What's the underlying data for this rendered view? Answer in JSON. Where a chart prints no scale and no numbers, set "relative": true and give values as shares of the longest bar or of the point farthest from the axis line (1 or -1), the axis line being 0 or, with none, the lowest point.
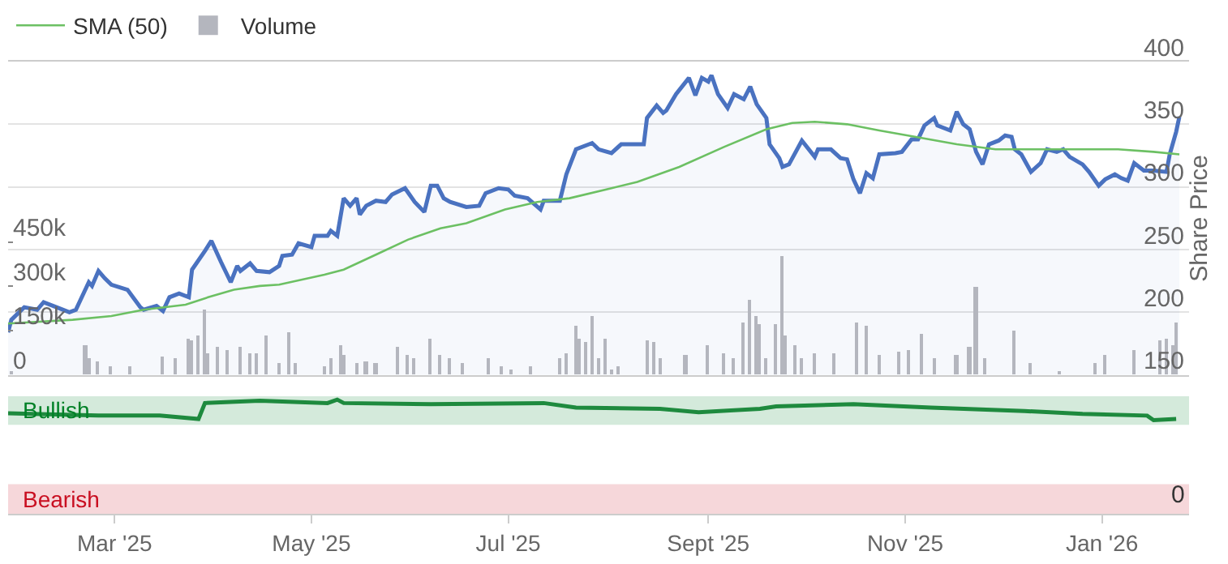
{
  "chart_data": [
    {
      "type": "line",
      "ylabel": "Share Price",
      "ylim": [
        150,
        400
      ],
      "yticks": [
        150,
        200,
        250,
        300,
        350,
        400
      ],
      "y2lim": [
        0,
        1060000
      ],
      "y2ticks": [
        {
          "value": 0,
          "label": "0"
        },
        {
          "value": 150000,
          "label": "150k"
        },
        {
          "value": 300000,
          "label": "300k"
        },
        {
          "value": 450000,
          "label": "450k"
        }
      ],
      "xlim": [
        "2025-01-27",
        "2026-01-28"
      ],
      "grid": "y",
      "legend": "top left",
      "tick_labels": "y",
      "series": [
        {
          "type": "bar",
          "name": "Volume",
          "axis": "y2",
          "color": "#b4b6be",
          "x": [
            "2025-01-28",
            "2025-02-20",
            "2025-02-21",
            "2025-02-24",
            "2025-02-28",
            "2025-03-06",
            "2025-03-16",
            "2025-03-20",
            "2025-03-24",
            "2025-03-25",
            "2025-03-27",
            "2025-03-29",
            "2025-03-30",
            "2025-04-02",
            "2025-04-05",
            "2025-04-09",
            "2025-04-12",
            "2025-04-14",
            "2025-04-17",
            "2025-04-21",
            "2025-04-24",
            "2025-04-26",
            "2025-05-05",
            "2025-05-07",
            "2025-05-10",
            "2025-05-11",
            "2025-05-15",
            "2025-05-18",
            "2025-05-21",
            "2025-05-28",
            "2025-05-31",
            "2025-06-02",
            "2025-06-07",
            "2025-06-10",
            "2025-06-13",
            "2025-06-17",
            "2025-06-25",
            "2025-06-29",
            "2025-07-02",
            "2025-07-08",
            "2025-07-17",
            "2025-07-19",
            "2025-07-22",
            "2025-07-23",
            "2025-07-25",
            "2025-07-27",
            "2025-07-29",
            "2025-07-31",
            "2025-08-02",
            "2025-08-04",
            "2025-08-13",
            "2025-08-15",
            "2025-08-17",
            "2025-08-25",
            "2025-09-01",
            "2025-09-06",
            "2025-09-09",
            "2025-09-12",
            "2025-09-14",
            "2025-09-16",
            "2025-09-17",
            "2025-09-19",
            "2025-09-22",
            "2025-09-24",
            "2025-09-25",
            "2025-09-28",
            "2025-09-30",
            "2025-10-04",
            "2025-10-10",
            "2025-10-17",
            "2025-10-20",
            "2025-10-24",
            "2025-10-30",
            "2025-11-02",
            "2025-11-06",
            "2025-11-10",
            "2025-11-17",
            "2025-11-21",
            "2025-11-23",
            "2025-11-26",
            "2025-12-05",
            "2025-12-10",
            "2025-12-19",
            "2025-12-30",
            "2026-01-02",
            "2026-01-11",
            "2026-01-19",
            "2026-01-21",
            "2026-01-23",
            "2026-01-24"
          ],
          "values": [
            15000,
            103000,
            57000,
            45000,
            30000,
            30000,
            62000,
            57000,
            124000,
            119000,
            134000,
            222000,
            72000,
            93000,
            83000,
            93000,
            72000,
            72000,
            134000,
            41000,
            145000,
            41000,
            30000,
            57000,
            103000,
            67000,
            41000,
            45000,
            41000,
            93000,
            67000,
            57000,
            124000,
            67000,
            57000,
            41000,
            57000,
            30000,
            20000,
            30000,
            57000,
            72000,
            165000,
            124000,
            109000,
            202000,
            57000,
            124000,
            20000,
            30000,
            119000,
            114000,
            57000,
            67000,
            103000,
            72000,
            57000,
            176000,
            253000,
            197000,
            171000,
            57000,
            171000,
            403000,
            134000,
            98000,
            57000,
            72000,
            72000,
            176000,
            165000,
            67000,
            78000,
            83000,
            140000,
            57000,
            67000,
            93000,
            300000,
            57000,
            150000,
            41000,
            15000,
            41000,
            67000,
            83000,
            119000,
            124000,
            98000,
            176000
          ]
        },
        {
          "type": "area",
          "color": "#4a72c0",
          "x": [
            "2025-01-27",
            "2025-01-28",
            "2025-02-01",
            "2025-02-05",
            "2025-02-07",
            "2025-02-11",
            "2025-02-15",
            "2025-02-17",
            "2025-02-21",
            "2025-02-22",
            "2025-02-24",
            "2025-02-26",
            "2025-02-28",
            "2025-03-05",
            "2025-03-09",
            "2025-03-10",
            "2025-03-14",
            "2025-03-16",
            "2025-03-18",
            "2025-03-21",
            "2025-03-24",
            "2025-03-25",
            "2025-03-29",
            "2025-03-31",
            "2025-04-03",
            "2025-04-06",
            "2025-04-08",
            "2025-04-09",
            "2025-04-12",
            "2025-04-14",
            "2025-04-18",
            "2025-04-21",
            "2025-04-22",
            "2025-04-25",
            "2025-04-27",
            "2025-05-01",
            "2025-05-02",
            "2025-05-06",
            "2025-05-07",
            "2025-05-09",
            "2025-05-11",
            "2025-05-13",
            "2025-05-15",
            "2025-05-16",
            "2025-05-18",
            "2025-05-21",
            "2025-05-24",
            "2025-05-26",
            "2025-05-30",
            "2025-06-02",
            "2025-06-05",
            "2025-06-07",
            "2025-06-09",
            "2025-06-11",
            "2025-06-13",
            "2025-06-18",
            "2025-06-22",
            "2025-06-24",
            "2025-06-28",
            "2025-07-01",
            "2025-07-03",
            "2025-07-07",
            "2025-07-11",
            "2025-07-12",
            "2025-07-17",
            "2025-07-19",
            "2025-07-22",
            "2025-07-27",
            "2025-07-29",
            "2025-08-02",
            "2025-08-05",
            "2025-08-12",
            "2025-08-13",
            "2025-08-16",
            "2025-08-18",
            "2025-08-19",
            "2025-08-22",
            "2025-08-26",
            "2025-08-28",
            "2025-08-30",
            "2025-09-01",
            "2025-09-02",
            "2025-09-04",
            "2025-09-07",
            "2025-09-09",
            "2025-09-12",
            "2025-09-14",
            "2025-09-16",
            "2025-09-19",
            "2025-09-20",
            "2025-09-23",
            "2025-09-24",
            "2025-09-26",
            "2025-09-30",
            "2025-10-04",
            "2025-10-05",
            "2025-10-09",
            "2025-10-12",
            "2025-10-14",
            "2025-10-16",
            "2025-10-18",
            "2025-10-20",
            "2025-10-22",
            "2025-10-24",
            "2025-10-29",
            "2025-10-31",
            "2025-11-03",
            "2025-11-05",
            "2025-11-07",
            "2025-11-10",
            "2025-11-11",
            "2025-11-15",
            "2025-11-17",
            "2025-11-19",
            "2025-11-21",
            "2025-11-23",
            "2025-11-25",
            "2025-11-27",
            "2025-11-30",
            "2025-12-02",
            "2025-12-04",
            "2025-12-05",
            "2025-12-07",
            "2025-12-10",
            "2025-12-13",
            "2025-12-15",
            "2025-12-18",
            "2025-12-20",
            "2025-12-22",
            "2025-12-26",
            "2025-12-28",
            "2025-12-31",
            "2026-01-02",
            "2026-01-05",
            "2026-01-07",
            "2026-01-09",
            "2026-01-11",
            "2026-01-14",
            "2026-01-17",
            "2026-01-21",
            "2026-01-22",
            "2026-01-24",
            "2026-01-25"
          ],
          "values": [
            184,
            194,
            204,
            202,
            208,
            204,
            200,
            202,
            224,
            221,
            233,
            227,
            222,
            218,
            204,
            202,
            205,
            201,
            212,
            215,
            212,
            234,
            249,
            257,
            240,
            224,
            237,
            233,
            239,
            233,
            232,
            237,
            245,
            246,
            255,
            252,
            261,
            261,
            265,
            261,
            291,
            285,
            291,
            278,
            285,
            289,
            288,
            294,
            299,
            288,
            280,
            301,
            301,
            291,
            288,
            284,
            285,
            295,
            299,
            298,
            293,
            291,
            282,
            289,
            289,
            310,
            330,
            335,
            330,
            327,
            334,
            334,
            355,
            365,
            359,
            361,
            374,
            387,
            373,
            387,
            384,
            389,
            374,
            363,
            374,
            370,
            380,
            366,
            355,
            334,
            323,
            316,
            318,
            337,
            324,
            330,
            330,
            323,
            322,
            306,
            295,
            311,
            307,
            326,
            327,
            328,
            338,
            338,
            349,
            355,
            349,
            345,
            360,
            350,
            346,
            328,
            318,
            334,
            337,
            341,
            340,
            330,
            326,
            312,
            319,
            330,
            328,
            330,
            324,
            318,
            312,
            301,
            306,
            310,
            307,
            305,
            319,
            313,
            313,
            312,
            326,
            344,
            356
          ]
        },
        {
          "type": "line",
          "name": "SMA (50)",
          "color": "#6cc063",
          "x": [
            "2025-01-27",
            "2025-02-16",
            "2025-02-28",
            "2025-03-10",
            "2025-03-23",
            "2025-03-30",
            "2025-04-07",
            "2025-04-15",
            "2025-04-21",
            "2025-05-05",
            "2025-05-11",
            "2025-05-21",
            "2025-05-31",
            "2025-06-10",
            "2025-06-18",
            "2025-06-30",
            "2025-07-10",
            "2025-07-20",
            "2025-08-02",
            "2025-08-10",
            "2025-08-23",
            "2025-09-06",
            "2025-09-19",
            "2025-09-27",
            "2025-10-04",
            "2025-10-14",
            "2025-10-24",
            "2025-11-04",
            "2025-11-17",
            "2025-11-29",
            "2025-12-07",
            "2025-12-24",
            "2026-01-06",
            "2026-01-17",
            "2026-01-25"
          ],
          "values": [
            191,
            194,
            197,
            202,
            206,
            212,
            218,
            221,
            222,
            230,
            234,
            246,
            258,
            267,
            271,
            282,
            288,
            291,
            299,
            304,
            316,
            332,
            346,
            351,
            352,
            350,
            345,
            340,
            334,
            330,
            330,
            330,
            330,
            328,
            326
          ]
        }
      ]
    },
    {
      "type": "line",
      "relative": true,
      "xlim": [
        "2025-01-27",
        "2026-01-28"
      ],
      "tick_labels": "x",
      "xticks": [
        {
          "value": "2025-03-01",
          "label": "Mar '25"
        },
        {
          "value": "2025-05-01",
          "label": "May '25"
        },
        {
          "value": "2025-07-01",
          "label": "Jul '25"
        },
        {
          "value": "2025-09-01",
          "label": "Sept '25"
        },
        {
          "value": "2025-11-01",
          "label": "Nov '25"
        },
        {
          "value": "2026-01-01",
          "label": "Jan '26"
        }
      ],
      "bands": [
        {
          "axis": "y",
          "from": 0.78,
          "to": 1.03,
          "label": "Bullish",
          "color": "#d4eadb"
        },
        {
          "axis": "y",
          "from": 0,
          "to": 0.26,
          "label": "Bearish",
          "color": "#f6d7da"
        }
      ],
      "annotations": [
        "0"
      ],
      "series": [
        {
          "color": "#1e8a3e",
          "x": [
            "2025-01-27",
            "2025-02-24",
            "2025-03-15",
            "2025-03-27",
            "2025-03-29",
            "2025-04-15",
            "2025-05-06",
            "2025-05-09",
            "2025-05-11",
            "2025-06-07",
            "2025-07-12",
            "2025-07-22",
            "2025-08-17",
            "2025-08-29",
            "2025-09-17",
            "2025-09-22",
            "2025-10-16",
            "2025-11-09",
            "2025-12-08",
            "2025-12-26",
            "2026-01-15",
            "2026-01-17",
            "2026-01-24"
          ],
          "values": [
            0.88,
            0.86,
            0.86,
            0.83,
            0.97,
            0.99,
            0.97,
            1.0,
            0.97,
            0.96,
            0.97,
            0.93,
            0.92,
            0.89,
            0.92,
            0.94,
            0.96,
            0.93,
            0.9,
            0.875,
            0.86,
            0.82,
            0.83
          ]
        }
      ]
    }
  ]
}
